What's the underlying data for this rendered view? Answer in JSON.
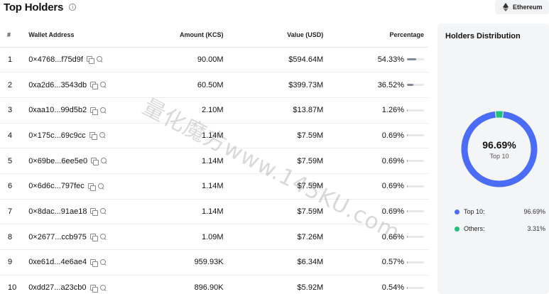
{
  "header": {
    "title": "Top Holders",
    "info_icon": "info-icon"
  },
  "chain_selector": {
    "label": "Ethereum",
    "icon": "ethereum-icon"
  },
  "table": {
    "columns": [
      "#",
      "Wallet Address",
      "Amount (KCS)",
      "Value (USD)",
      "Percentage"
    ],
    "rows": [
      {
        "rank": "1",
        "address": "0×4768...f75d9f",
        "amount": "90.00M",
        "value": "$594.64M",
        "percentage": "54.33%",
        "pct": 54.33
      },
      {
        "rank": "2",
        "address": "0xa2d6...3543db",
        "amount": "60.50M",
        "value": "$399.73M",
        "percentage": "36.52%",
        "pct": 36.52
      },
      {
        "rank": "3",
        "address": "0xaa10...99d5b2",
        "amount": "2.10M",
        "value": "$13.87M",
        "percentage": "1.26%",
        "pct": 1.26
      },
      {
        "rank": "4",
        "address": "0×175c...69c9cc",
        "amount": "1.14M",
        "value": "$7.59M",
        "percentage": "0.69%",
        "pct": 0.69
      },
      {
        "rank": "5",
        "address": "0×69be...6ee5e0",
        "amount": "1.14M",
        "value": "$7.59M",
        "percentage": "0.69%",
        "pct": 0.69
      },
      {
        "rank": "6",
        "address": "0×6d6c...797fec",
        "amount": "1.14M",
        "value": "$7.59M",
        "percentage": "0.69%",
        "pct": 0.69
      },
      {
        "rank": "7",
        "address": "0×8dac...91ae18",
        "amount": "1.14M",
        "value": "$7.59M",
        "percentage": "0.69%",
        "pct": 0.69
      },
      {
        "rank": "8",
        "address": "0×2677...ccb975",
        "amount": "1.09M",
        "value": "$7.26M",
        "percentage": "0.66%",
        "pct": 0.66
      },
      {
        "rank": "9",
        "address": "0xe61d...4e6ae4",
        "amount": "959.93K",
        "value": "$6.34M",
        "percentage": "0.57%",
        "pct": 0.57
      },
      {
        "rank": "10",
        "address": "0xdd27...a23cb0",
        "amount": "896.90K",
        "value": "$5.92M",
        "percentage": "0.54%",
        "pct": 0.54
      }
    ]
  },
  "distribution": {
    "title": "Holders Distribution",
    "center_value": "96.69%",
    "center_label": "Top 10",
    "legend": [
      {
        "name": "Top 10:",
        "value": "96.69%",
        "color": "#4a6cf7"
      },
      {
        "name": "Others:",
        "value": "3.31%",
        "color": "#22c07a"
      }
    ],
    "top10_share": 96.69,
    "others_share": 3.31
  },
  "watermark": "量化魔方www.145KU.com"
}
